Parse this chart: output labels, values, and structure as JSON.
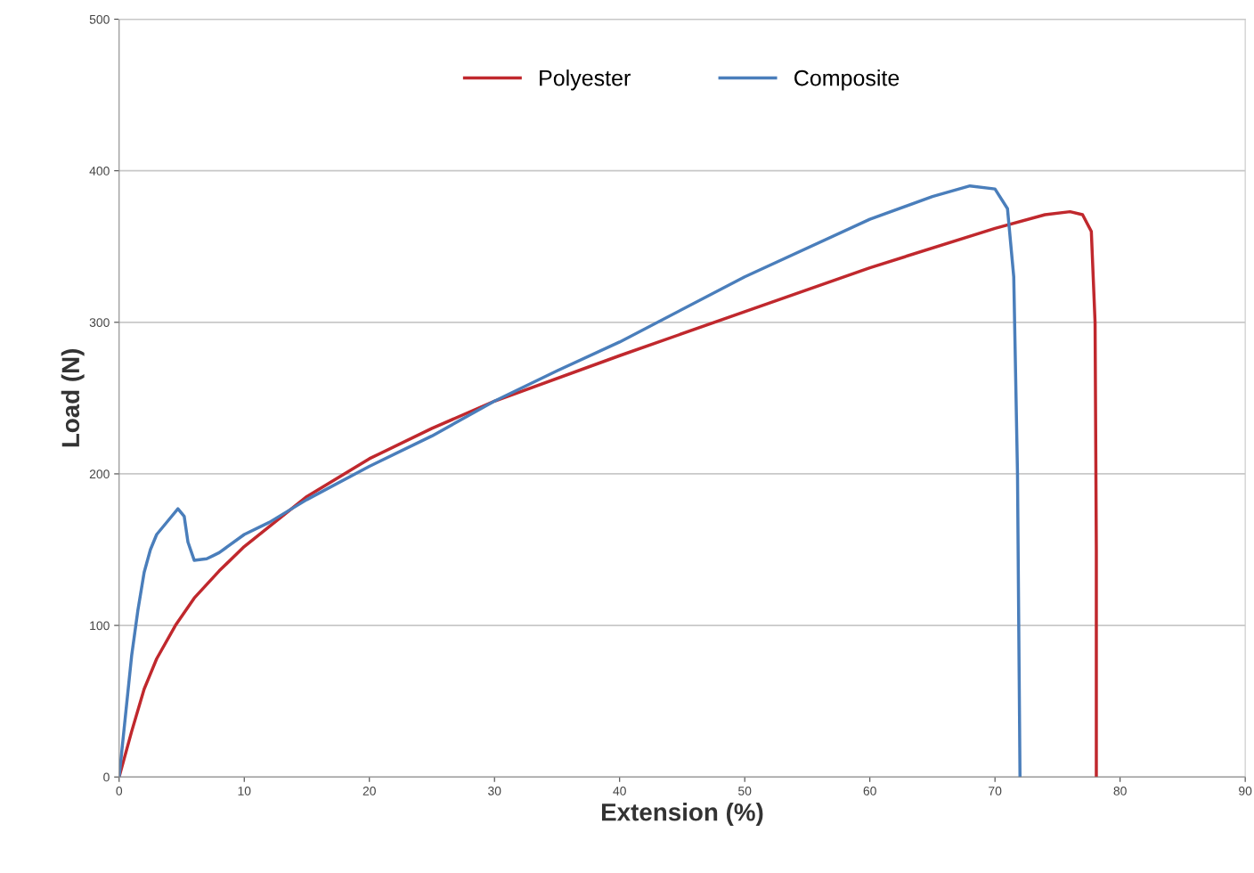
{
  "chart_data": {
    "type": "line",
    "xlabel": "Extension (%)",
    "ylabel": "Load (N)",
    "xlim": [
      0,
      90
    ],
    "ylim": [
      0,
      500
    ],
    "xticks": [
      0,
      10,
      20,
      30,
      40,
      50,
      60,
      70,
      80,
      90
    ],
    "yticks": [
      0,
      100,
      200,
      300,
      400,
      500
    ],
    "grid": "y",
    "legend": "top",
    "marker": "none",
    "line_style": "solid",
    "series": [
      {
        "name": "Polyester",
        "color": "#c0282d",
        "x": [
          0,
          1,
          2,
          3,
          4.5,
          6,
          8,
          10,
          15,
          20,
          25,
          30,
          40,
          50,
          60,
          70,
          74,
          76,
          77,
          77.7,
          78,
          78.1,
          78.1
        ],
        "values": [
          0,
          30,
          58,
          78,
          100,
          118,
          136,
          152,
          185,
          210,
          230,
          248,
          278,
          307,
          336,
          362,
          371,
          373,
          371,
          360,
          300,
          150,
          0
        ]
      },
      {
        "name": "Composite",
        "color": "#4a7ebb",
        "x": [
          0,
          0.5,
          1,
          1.5,
          2,
          2.5,
          3,
          4,
          4.7,
          5.2,
          5.5,
          6,
          7,
          7.5,
          8,
          10,
          12,
          15,
          20,
          25,
          30,
          35,
          40,
          50,
          60,
          65,
          68,
          70,
          71,
          71.5,
          71.8,
          72
        ],
        "values": [
          0,
          40,
          80,
          110,
          135,
          150,
          160,
          170,
          177,
          172,
          155,
          143,
          144,
          146,
          148,
          160,
          168,
          183,
          205,
          225,
          248,
          268,
          287,
          330,
          368,
          383,
          390,
          388,
          375,
          330,
          200,
          0
        ]
      }
    ]
  }
}
